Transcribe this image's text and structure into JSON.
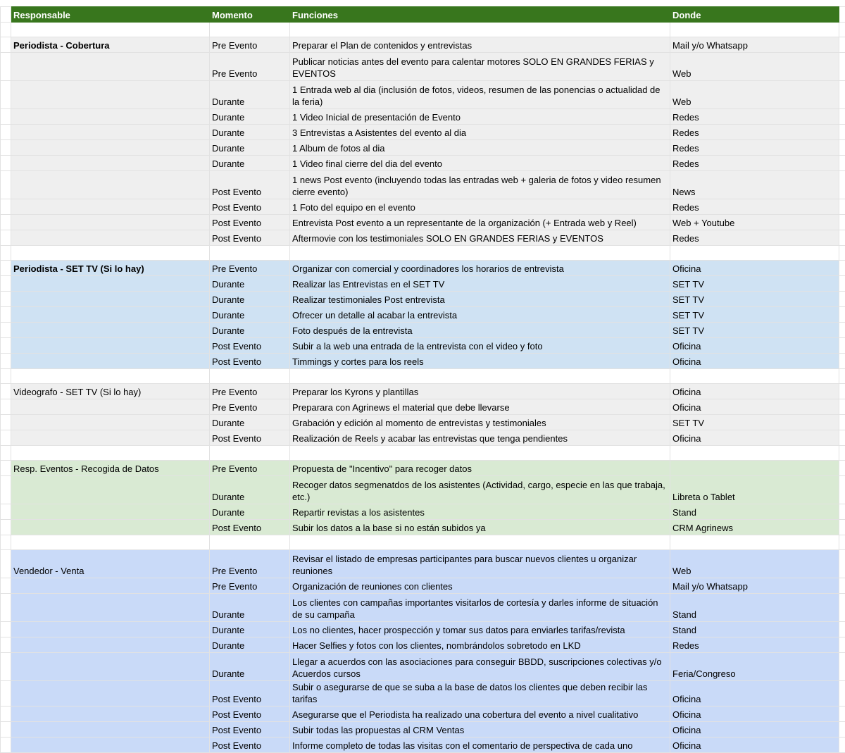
{
  "headers": {
    "responsable": "Responsable",
    "momento": "Momento",
    "funciones": "Funciones",
    "donde": "Donde"
  },
  "colors": {
    "header": "#38761d",
    "gray": "#efefef",
    "light_blue": "#cfe2f3",
    "light_green": "#d9ead3",
    "cornflower": "#c9daf8"
  },
  "sections": [
    {
      "responsable": "Periodista - Cobertura",
      "bold": true,
      "color": "#efefef",
      "rows": [
        {
          "momento": "Pre Evento",
          "funciones": "Preparar el Plan de contenidos y entrevistas",
          "donde": "Mail y/o Whatsapp"
        },
        {
          "momento": "Pre Evento",
          "funciones": "Publicar noticias antes del evento para calentar motores SOLO EN GRANDES FERIAS y EVENTOS",
          "donde": "Web",
          "lines": 2
        },
        {
          "momento": "Durante",
          "funciones": "1 Entrada web al dia (inclusión de fotos, videos, resumen de las ponencias o actualidad de la feria)",
          "donde": "Web",
          "lines": 2
        },
        {
          "momento": "Durante",
          "funciones": "1 Video Inicial de presentación de Evento",
          "donde": "Redes"
        },
        {
          "momento": "Durante",
          "funciones": "3 Entrevistas a Asistentes del evento al dia",
          "donde": "Redes"
        },
        {
          "momento": "Durante",
          "funciones": "1 Album de fotos al dia",
          "donde": "Redes"
        },
        {
          "momento": "Durante",
          "funciones": "1 Video final cierre del dia del evento",
          "donde": "Redes"
        },
        {
          "momento": "Post Evento",
          "funciones": "1 news Post evento (incluyendo todas las entradas web + galeria de fotos y video resumen cierre evento)",
          "donde": "News",
          "lines": 2
        },
        {
          "momento": "Post Evento",
          "funciones": "1 Foto del equipo en el evento",
          "donde": "Redes"
        },
        {
          "momento": "Post Evento",
          "funciones": "Entrevista Post evento a un representante de la organización (+ Entrada web y Reel)",
          "donde": "Web + Youtube"
        },
        {
          "momento": "Post Evento",
          "funciones": "Aftermovie con los testimoniales SOLO EN GRANDES FERIAS y EVENTOS",
          "donde": "Redes"
        }
      ]
    },
    {
      "responsable": "Periodista - SET TV (Si lo hay)",
      "bold": true,
      "color": "#cfe2f3",
      "rows": [
        {
          "momento": "Pre Evento",
          "funciones": "Organizar con comercial y coordinadores los horarios de entrevista",
          "donde": "Oficina"
        },
        {
          "momento": "Durante",
          "funciones": "Realizar las Entrevistas en el SET TV",
          "donde": "SET TV"
        },
        {
          "momento": "Durante",
          "funciones": "Realizar testimoniales Post entrevista",
          "donde": "SET TV"
        },
        {
          "momento": "Durante",
          "funciones": "Ofrecer un detalle al acabar la entrevista",
          "donde": "SET TV"
        },
        {
          "momento": "Durante",
          "funciones": "Foto después de la entrevista",
          "donde": "SET TV"
        },
        {
          "momento": "Post Evento",
          "funciones": "Subir a la web una entrada de la entrevista con el video y foto",
          "donde": "Oficina"
        },
        {
          "momento": "Post Evento",
          "funciones": "Timmings y cortes para los reels",
          "donde": "Oficina"
        }
      ]
    },
    {
      "responsable": "Videografo - SET TV (Si lo hay)",
      "bold": false,
      "color": "#efefef",
      "rows": [
        {
          "momento": "Pre Evento",
          "funciones": "Preparar los Kyrons y plantillas",
          "donde": "Oficina"
        },
        {
          "momento": "Pre Evento",
          "funciones": "Preparara con Agrinews el material que debe llevarse",
          "donde": "Oficina"
        },
        {
          "momento": "Durante",
          "funciones": "Grabación y edición al momento de entrevistas y testimoniales",
          "donde": "SET TV"
        },
        {
          "momento": "Post Evento",
          "funciones": "Realización de Reels y acabar las entrevistas que tenga pendientes",
          "donde": "Oficina"
        }
      ]
    },
    {
      "responsable": "Resp. Eventos - Recogida de Datos",
      "bold": false,
      "color": "#d9ead3",
      "rows": [
        {
          "momento": "Pre Evento",
          "funciones": "Propuesta de \"Incentivo\" para recoger datos",
          "donde": ""
        },
        {
          "momento": "Durante",
          "funciones": "Recoger datos segmenatdos de los asistentes (Actividad, cargo, especie en las que trabaja, etc.)",
          "donde": "Libreta o Tablet",
          "lines": 2
        },
        {
          "momento": "Durante",
          "funciones": "Repartir revistas a los asistentes",
          "donde": "Stand"
        },
        {
          "momento": "Post Evento",
          "funciones": "Subir los datos a la base si no están subidos ya",
          "donde": "CRM Agrinews"
        }
      ]
    },
    {
      "responsable": "Vendedor - Venta",
      "bold": false,
      "color": "#c9daf8",
      "rows": [
        {
          "momento": "Pre Evento",
          "funciones": "Revisar el listado de empresas participantes para buscar nuevos clientes u organizar reuniones",
          "donde": "Web",
          "lines": 2
        },
        {
          "momento": "Pre Evento",
          "funciones": "Organización de reuniones con clientes",
          "donde": "Mail y/o Whatsapp"
        },
        {
          "momento": "Durante",
          "funciones": "Los clientes con campañas importantes visitarlos de cortesía y darles informe de situación de su campaña",
          "donde": "Stand",
          "lines": 2
        },
        {
          "momento": "Durante",
          "funciones": "Los no clientes, hacer prospección y tomar sus datos para enviarles tarifas/revista",
          "donde": "Stand"
        },
        {
          "momento": "Durante",
          "funciones": "Hacer Selfies y fotos con los clientes, nombrándolos sobretodo en LKD",
          "donde": "Redes"
        },
        {
          "momento": "Durante",
          "funciones": "Llegar a acuerdos con las asociaciones para conseguir BBDD, suscripciones colectivas y/o Acuerdos cursos",
          "donde": "Feria/Congreso",
          "lines": 2
        },
        {
          "momento": "Post Evento",
          "funciones": "Subir o asegurarse de que se suba a la base de datos los clientes que deben recibir las tarifas",
          "donde": "Oficina"
        },
        {
          "momento": "Post Evento",
          "funciones": "Asegurarse que el Periodista ha realizado una cobertura del evento a nivel cualitativo",
          "donde": "Oficina"
        },
        {
          "momento": "Post Evento",
          "funciones": "Subir todas las propuestas al CRM Ventas",
          "donde": "Oficina"
        },
        {
          "momento": "Post Evento",
          "funciones": "Informe completo de todas las visitas con el comentario de perspectiva de cada uno",
          "donde": "Oficina"
        }
      ]
    }
  ]
}
